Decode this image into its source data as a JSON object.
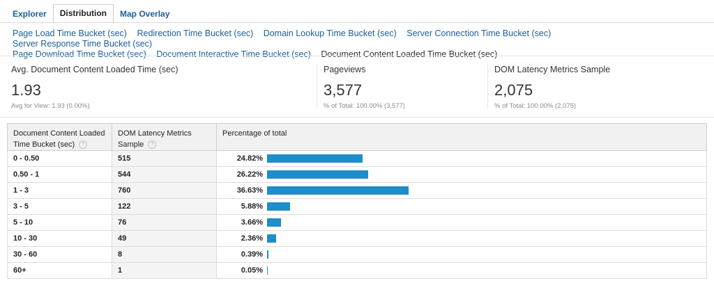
{
  "tabs": [
    "Explorer",
    "Distribution",
    "Map Overlay"
  ],
  "active_tab": 1,
  "buckets_row1": [
    "Page Load Time Bucket (sec)",
    "Redirection Time Bucket (sec)",
    "Domain Lookup Time Bucket (sec)",
    "Server Connection Time Bucket (sec)",
    "Server Response Time Bucket (sec)"
  ],
  "buckets_row2": [
    "Page Download Time Bucket (sec)",
    "Document Interactive Time Bucket (sec)"
  ],
  "current_bucket": "Document Content Loaded Time Bucket (sec)",
  "metrics": [
    {
      "label": "Avg. Document Content Loaded Time (sec)",
      "value": "1.93",
      "sub": "Avg for View: 1.93 (0.00%)"
    },
    {
      "label": "Pageviews",
      "value": "3,577",
      "sub": "% of Total: 100.00% (3,577)"
    },
    {
      "label": "DOM Latency Metrics Sample",
      "value": "2,075",
      "sub": "% of Total: 100.00% (2,075)"
    }
  ],
  "table": {
    "headers": [
      "Document Content Loaded Time Bucket (sec)",
      "DOM Latency Metrics Sample",
      "Percentage of total"
    ],
    "help_icon": "?",
    "rows": [
      {
        "bucket": "0 - 0.50",
        "sample": "515",
        "pct": "24.82%",
        "frac": 0.2482
      },
      {
        "bucket": "0.50 - 1",
        "sample": "544",
        "pct": "26.22%",
        "frac": 0.2622
      },
      {
        "bucket": "1 - 3",
        "sample": "760",
        "pct": "36.63%",
        "frac": 0.3663
      },
      {
        "bucket": "3 - 5",
        "sample": "122",
        "pct": "5.88%",
        "frac": 0.0588
      },
      {
        "bucket": "5 - 10",
        "sample": "76",
        "pct": "3.66%",
        "frac": 0.0366
      },
      {
        "bucket": "10 - 30",
        "sample": "49",
        "pct": "2.36%",
        "frac": 0.0236
      },
      {
        "bucket": "30 - 60",
        "sample": "8",
        "pct": "0.39%",
        "frac": 0.0039
      },
      {
        "bucket": "60+",
        "sample": "1",
        "pct": "0.05%",
        "frac": 0.0005
      }
    ]
  },
  "colors": {
    "link": "#1a5e9a",
    "bar": "#1f8dc8"
  }
}
